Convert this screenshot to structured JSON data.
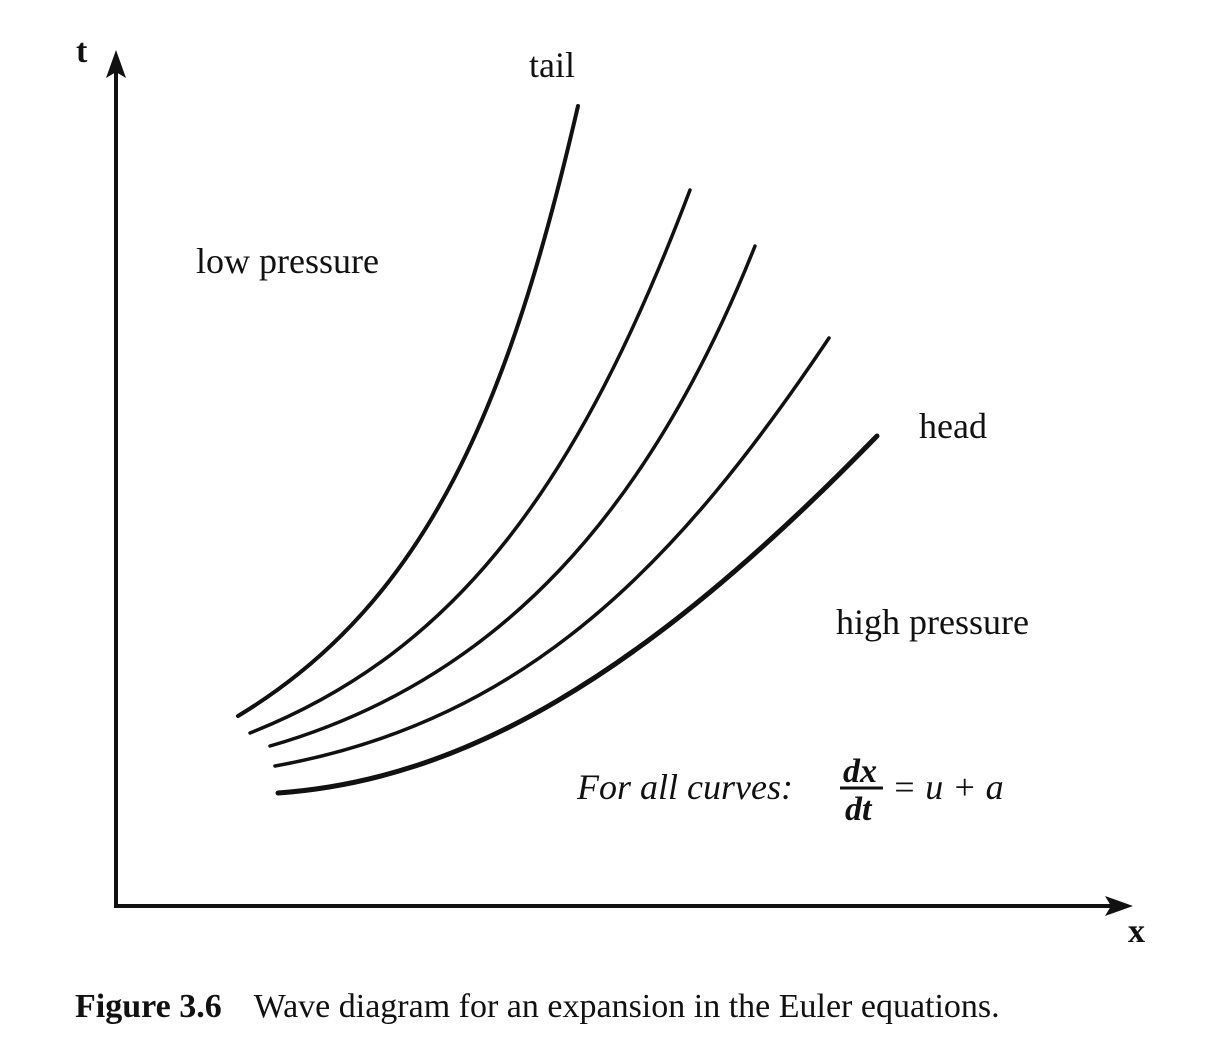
{
  "axes": {
    "x_label": "x",
    "y_label": "t"
  },
  "labels": {
    "tail": "tail",
    "head": "head",
    "low_pressure": "low pressure",
    "high_pressure": "high pressure"
  },
  "formula": {
    "prefix": "For all curves:",
    "numerator": "dx",
    "denominator": "dt",
    "rhs": "= u + a"
  },
  "caption": {
    "number": "Figure 3.6",
    "text": "Wave diagram for an expansion in the Euler equations."
  },
  "colors": {
    "ink": "#111111",
    "background": "#ffffff"
  }
}
